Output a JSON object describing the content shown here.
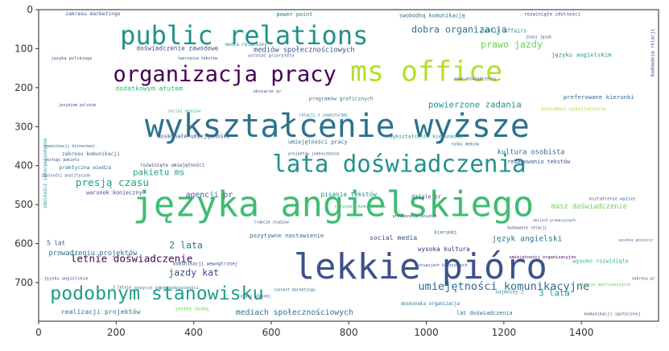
{
  "chart_data": {
    "type": "wordcloud",
    "title": "",
    "xlabel": "",
    "ylabel": "",
    "xlim": [
      0,
      1599
    ],
    "ylim": [
      799,
      0
    ],
    "xticks": [
      0,
      200,
      400,
      600,
      800,
      1000,
      1200,
      1400
    ],
    "yticks": [
      0,
      100,
      200,
      300,
      400,
      500,
      600,
      700
    ],
    "grid": false,
    "words": [
      {
        "text": "języka angielskiego",
        "x": 760,
        "y": 505,
        "size": 90,
        "color": "#3fbc73"
      },
      {
        "text": "wykształcenie wyższe",
        "x": 770,
        "y": 305,
        "size": 82,
        "color": "#2c728e"
      },
      {
        "text": "lekkie pióro",
        "x": 985,
        "y": 665,
        "size": 90,
        "color": "#3b528b"
      },
      {
        "text": "public relations",
        "x": 530,
        "y": 70,
        "size": 66,
        "color": "#21918c"
      },
      {
        "text": "organizacja pracy",
        "x": 480,
        "y": 168,
        "size": 56,
        "color": "#440154"
      },
      {
        "text": "ms office",
        "x": 1000,
        "y": 162,
        "size": 72,
        "color": "#b5de2b"
      },
      {
        "text": "lata doświadczenia",
        "x": 930,
        "y": 400,
        "size": 60,
        "color": "#21918c"
      },
      {
        "text": "podobnym stanowisku",
        "x": 305,
        "y": 730,
        "size": 48,
        "color": "#1f9e89"
      },
      {
        "text": "umiejętności komunikacyjne",
        "x": 1200,
        "y": 710,
        "size": 28,
        "color": "#31688e"
      },
      {
        "text": "dobra organizacja",
        "x": 1085,
        "y": 52,
        "size": 24,
        "color": "#2c728e"
      },
      {
        "text": "prawo jazdy",
        "x": 1220,
        "y": 90,
        "size": 24,
        "color": "#6ece58"
      },
      {
        "text": "mediów społecznościowych",
        "x": 685,
        "y": 103,
        "size": 18,
        "color": "#3b528b"
      },
      {
        "text": "doświadczenie zawodowe",
        "x": 358,
        "y": 100,
        "size": 16,
        "color": "#3b528b"
      },
      {
        "text": "dodatkowym atutem",
        "x": 285,
        "y": 202,
        "size": 17,
        "color": "#35b779"
      },
      {
        "text": "powierzone zadania",
        "x": 1125,
        "y": 245,
        "size": 22,
        "color": "#21918c"
      },
      {
        "text": "pakietu ms",
        "x": 310,
        "y": 418,
        "size": 22,
        "color": "#1f9e89"
      },
      {
        "text": "presją czasu",
        "x": 190,
        "y": 445,
        "size": 26,
        "color": "#1f9e89"
      },
      {
        "text": "agencji pr",
        "x": 440,
        "y": 475,
        "size": 20,
        "color": "#31688e"
      },
      {
        "text": "letnie doświadczenie",
        "x": 240,
        "y": 640,
        "size": 26,
        "color": "#440154"
      },
      {
        "text": "jazdy kat",
        "x": 400,
        "y": 675,
        "size": 24,
        "color": "#3e4a89"
      },
      {
        "text": "język angielski",
        "x": 1260,
        "y": 587,
        "size": 20,
        "color": "#2a788e"
      },
      {
        "text": "umiejętności pracy",
        "x": 720,
        "y": 340,
        "size": 14,
        "color": "#31688e"
      },
      {
        "text": "kultura osobista",
        "x": 1270,
        "y": 365,
        "size": 18,
        "color": "#31688e"
      },
      {
        "text": "masz doświadczenie",
        "x": 1420,
        "y": 505,
        "size": 18,
        "color": "#6ece58"
      },
      {
        "text": "2 lata",
        "x": 380,
        "y": 605,
        "size": 24,
        "color": "#2a788e"
      },
      {
        "text": "3 lata",
        "x": 1330,
        "y": 728,
        "size": 22,
        "color": "#1f9e89"
      },
      {
        "text": "mediach społecznościowych",
        "x": 660,
        "y": 776,
        "size": 20,
        "color": "#2c728e"
      },
      {
        "text": "realizacji projektów",
        "x": 160,
        "y": 775,
        "size": 17,
        "color": "#2c728e"
      },
      {
        "text": "warunek konieczny",
        "x": 195,
        "y": 470,
        "size": 14,
        "color": "#3e4a89"
      },
      {
        "text": "pisania tekstów",
        "x": 800,
        "y": 475,
        "size": 16,
        "color": "#21918c"
      },
      {
        "text": "social media",
        "x": 915,
        "y": 585,
        "size": 17,
        "color": "#3b528b"
      },
      {
        "text": "wysoka kultura",
        "x": 1045,
        "y": 615,
        "size": 16,
        "color": "#472d7b"
      },
      {
        "text": "prowadzeniu projektów",
        "x": 140,
        "y": 625,
        "size": 18,
        "color": "#2c728e"
      },
      {
        "text": "pozytywne nastawienie",
        "x": 640,
        "y": 580,
        "size": 15,
        "color": "#31688e"
      },
      {
        "text": "programów graficznych",
        "x": 780,
        "y": 228,
        "size": 13,
        "color": "#2a788e"
      },
      {
        "text": "języku angielskim",
        "x": 1400,
        "y": 117,
        "size": 15,
        "color": "#21918c"
      },
      {
        "text": "preferowane kierunki",
        "x": 1445,
        "y": 225,
        "size": 15,
        "color": "#31688e"
      },
      {
        "text": "wykształcenie kierunkowe",
        "x": 1000,
        "y": 325,
        "size": 13,
        "color": "#21918c"
      },
      {
        "text": "redagowania tekstów",
        "x": 1290,
        "y": 390,
        "size": 14,
        "color": "#3b528b"
      },
      {
        "text": "public affairs",
        "x": 1200,
        "y": 55,
        "size": 14,
        "color": "#21918c"
      },
      {
        "text": "power point",
        "x": 660,
        "y": 12,
        "size": 14,
        "color": "#2c728e"
      },
      {
        "text": "swobodną komunikację",
        "x": 1015,
        "y": 15,
        "size": 14,
        "color": "#2c728e"
      },
      {
        "text": "rozwinięte zdolności",
        "x": 1325,
        "y": 12,
        "size": 12,
        "color": "#3b528b"
      },
      {
        "text": "zakresu marketingu",
        "x": 140,
        "y": 10,
        "size": 13,
        "color": "#3b528b"
      },
      {
        "text": "doskonałe umiejętności",
        "x": 400,
        "y": 325,
        "size": 14,
        "color": "#3b528b"
      },
      {
        "text": "praktyczna wiedza",
        "x": 120,
        "y": 405,
        "size": 13,
        "color": "#2c728e"
      },
      {
        "text": "zakresu komunikacji",
        "x": 135,
        "y": 370,
        "size": 13,
        "color": "#31688e"
      },
      {
        "text": "wysoko rozwinięte",
        "x": 1450,
        "y": 645,
        "size": 14,
        "color": "#35b779"
      },
      {
        "text": "5 lat",
        "x": 45,
        "y": 600,
        "size": 16,
        "color": "#3b528b"
      },
      {
        "text": "najmniej 2",
        "x": 1215,
        "y": 725,
        "size": 12,
        "color": "#21918c"
      },
      {
        "text": "komunikacji wewnętrznej",
        "x": 430,
        "y": 652,
        "size": 12,
        "color": "#3b528b"
      },
      {
        "text": "lat doświadczenia",
        "x": 1150,
        "y": 778,
        "size": 14,
        "color": "#2c728e"
      },
      {
        "text": "narzędzi komunikacji",
        "x": 830,
        "y": 505,
        "size": 11,
        "color": "#35b779"
      },
      {
        "text": "social mediów",
        "x": 375,
        "y": 260,
        "size": 11,
        "color": "#35b779"
      },
      {
        "text": "języka polskiego",
        "x": 85,
        "y": 125,
        "size": 11,
        "color": "#3b528b"
      },
      {
        "text": "zdolności interpersonalne",
        "x": 18,
        "y": 420,
        "size": 12,
        "color": "#21918c",
        "rotate": -90
      },
      {
        "text": "budowania relacji",
        "x": 1585,
        "y": 110,
        "size": 12,
        "color": "#3b528b",
        "rotate": -90
      },
      {
        "text": "media relations",
        "x": 535,
        "y": 90,
        "size": 12,
        "color": "#21918c"
      },
      {
        "text": "ustalać priorytety",
        "x": 600,
        "y": 118,
        "size": 11,
        "color": "#3b528b"
      },
      {
        "text": "kształcenie wyższe",
        "x": 1480,
        "y": 485,
        "size": 11,
        "color": "#3b528b"
      },
      {
        "text": "prowadzeniu działań",
        "x": 970,
        "y": 530,
        "size": 10,
        "color": "#3b528b"
      },
      {
        "text": "umiejętności organizacyjne",
        "x": 1300,
        "y": 635,
        "size": 11,
        "color": "#440154"
      },
      {
        "text": "doskonała organizacja",
        "x": 1010,
        "y": 755,
        "size": 12,
        "color": "#2c728e"
      },
      {
        "text": "dziale pr",
        "x": 1000,
        "y": 480,
        "size": 14,
        "color": "#3b528b"
      },
      {
        "text": "rozwinięte umiejętności",
        "x": 345,
        "y": 400,
        "size": 12,
        "color": "#3e4a89"
      },
      {
        "text": "obszarze pr",
        "x": 590,
        "y": 210,
        "size": 11,
        "color": "#3b528b"
      },
      {
        "text": "posiadasz wykształcenie",
        "x": 1380,
        "y": 255,
        "size": 12,
        "color": "#b5de2b"
      },
      {
        "text": "kierunki",
        "x": 1050,
        "y": 572,
        "size": 12,
        "color": "#31688e"
      },
      {
        "text": "3 letnie",
        "x": 215,
        "y": 712,
        "size": 10,
        "color": "#3b528b"
      },
      {
        "text": "pracy własnej",
        "x": 560,
        "y": 735,
        "size": 10,
        "color": "#3b528b"
      },
      {
        "text": "jesteś osobą",
        "x": 395,
        "y": 768,
        "size": 12,
        "color": "#6ece58"
      },
      {
        "text": "pozycje odpowiedzialności",
        "x": 330,
        "y": 713,
        "size": 11,
        "color": "#2c728e"
      },
      {
        "text": "projektów jednoczesnie",
        "x": 710,
        "y": 370,
        "size": 10,
        "color": "#3b528b"
      },
      {
        "text": "relacji z inwestorami",
        "x": 735,
        "y": 270,
        "size": 10,
        "color": "#2c728e"
      },
      {
        "text": "komunikacji biznesowej",
        "x": 80,
        "y": 350,
        "size": 10,
        "color": "#2c728e"
      },
      {
        "text": "obsługi pakietu",
        "x": 60,
        "y": 385,
        "size": 10,
        "color": "#3b528b"
      },
      {
        "text": "content marketingu",
        "x": 660,
        "y": 718,
        "size": 10,
        "color": "#31688e"
      },
      {
        "text": "sytuacjach kryzysowych",
        "x": 1040,
        "y": 655,
        "size": 10,
        "color": "#3b528b"
      },
      {
        "text": "komunikacji społecznej",
        "x": 1480,
        "y": 780,
        "size": 11,
        "color": "#3b528b"
      },
      {
        "text": "znasz język",
        "x": 1290,
        "y": 70,
        "size": 10,
        "color": "#3b528b"
      },
      {
        "text": "rynku mediów",
        "x": 1100,
        "y": 345,
        "size": 10,
        "color": "#3b528b"
      },
      {
        "text": "trakcie studiów",
        "x": 600,
        "y": 545,
        "size": 10,
        "color": "#3b528b"
      },
      {
        "text": "stopniu umożliwiającym",
        "x": 1460,
        "y": 705,
        "size": 10,
        "color": "#6ece58"
      },
      {
        "text": "zakresu pr",
        "x": 1560,
        "y": 690,
        "size": 10,
        "color": "#3b528b"
      },
      {
        "text": "tworzenia tekstów",
        "x": 410,
        "y": 125,
        "size": 10,
        "color": "#3b528b"
      },
      {
        "text": "jezykiem polskim",
        "x": 100,
        "y": 245,
        "size": 10,
        "color": "#3b528b"
      },
      {
        "text": "zdolności analityczne",
        "x": 70,
        "y": 425,
        "size": 10,
        "color": "#3b528b"
      },
      {
        "text": "budowanie relacji",
        "x": 1260,
        "y": 560,
        "size": 10,
        "color": "#3b528b"
      },
      {
        "text": "języku angielskim",
        "x": 70,
        "y": 690,
        "size": 11,
        "color": "#3b528b"
      },
      {
        "text": "nowe doświadczenia",
        "x": 1125,
        "y": 178,
        "size": 10,
        "color": "#3b528b"
      },
      {
        "text": "akcjach promocyjnych",
        "x": 1330,
        "y": 540,
        "size": 9,
        "color": "#3b528b"
      },
      {
        "text": "wysokie poczucie",
        "x": 1540,
        "y": 590,
        "size": 9,
        "color": "#3b528b"
      }
    ]
  }
}
